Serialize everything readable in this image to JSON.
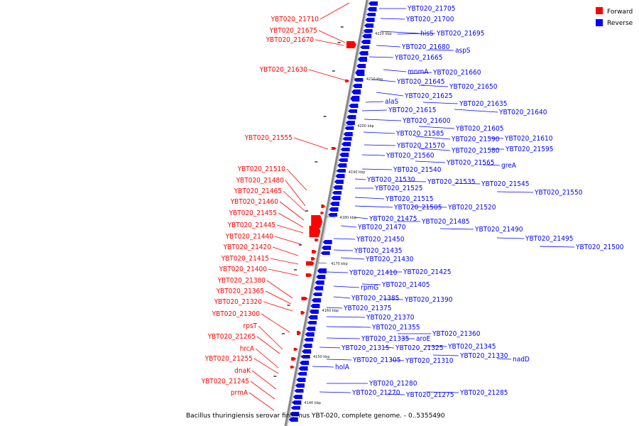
{
  "caption": "Bacillus thuringiensis serovar finitimus YBT-020, complete genome. - 0..5355490",
  "legend": [
    {
      "label": "Forward",
      "color": "#ff0000"
    },
    {
      "label": "Reverse",
      "color": "#0000ff"
    }
  ],
  "colors": {
    "forward": "#ff0000",
    "reverse": "#0000ff",
    "axis": "#888888"
  },
  "ticks": [
    "4220 kbp",
    "4210 kbp",
    "4200 kbp",
    "4190 kbp",
    "4180 kbp",
    "4170 kbp",
    "4160 kbp",
    "4150 kbp",
    "4140 kbp"
  ],
  "forward_labels": [
    "YBT020_21710",
    "YBT020_21675",
    "YBT020_21670",
    "YBT020_21630",
    "YBT020_21555",
    "YBT020_21510",
    "YBT020_21480",
    "YBT020_21465",
    "YBT020_21460",
    "YBT020_21455",
    "YBT020_21445",
    "YBT020_21440",
    "YBT020_21420",
    "YBT020_21415",
    "YBT020_21400",
    "YBT020_21380",
    "YBT020_21365",
    "YBT020_21320",
    "YBT020_21300",
    "rpsT",
    "YBT020_21265",
    "hrcA",
    "YBT020_21255",
    "dnaK",
    "YBT020_21245",
    "prmA"
  ],
  "reverse_labels": [
    "YBT020_21705",
    "YBT020_21700",
    "hisS",
    "YBT020_21695",
    "YBT020_21680",
    "aspS",
    "YBT020_21665",
    "mnmA",
    "YBT020_21660",
    "YBT020_21645",
    "YBT020_21650",
    "YBT020_21625",
    "YBT020_21635",
    "alaS",
    "YBT020_21640",
    "YBT020_21615",
    "YBT020_21600",
    "YBT020_21605",
    "YBT020_21585",
    "YBT020_21590",
    "YBT020_21610",
    "YBT020_21570",
    "YBT020_21580",
    "YBT020_21595",
    "YBT020_21560",
    "YBT020_21565",
    "greA",
    "YBT020_21540",
    "YBT020_21530",
    "YBT020_21535",
    "YBT020_21545",
    "YBT020_21525",
    "YBT020_21550",
    "YBT020_21515",
    "YBT020_21505",
    "YBT020_21520",
    "YBT020_21475",
    "YBT020_21485",
    "YBT020_21470",
    "YBT020_21490",
    "YBT020_21495",
    "YBT020_21450",
    "YBT020_21500",
    "YBT020_21435",
    "YBT020_21430",
    "YBT020_21410",
    "YBT020_21425",
    "rpmG",
    "YBT020_21405",
    "YBT020_21385",
    "YBT020_21390",
    "YBT020_21375",
    "YBT020_21370",
    "YBT020_21355",
    "YBT020_21360",
    "YBT020_21335",
    "aroE",
    "YBT020_21345",
    "YBT020_21315",
    "YBT020_21325",
    "YBT020_21330",
    "nadD",
    "YBT020_21305",
    "YBT020_21310",
    "holA",
    "YBT020_21280",
    "YBT020_21270",
    "YBT020_21275",
    "YBT020_21285"
  ]
}
